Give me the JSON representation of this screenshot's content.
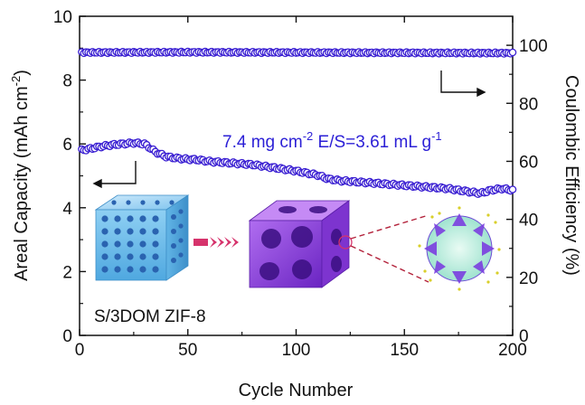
{
  "chart_data": {
    "type": "scatter",
    "xlabel": "Cycle Number",
    "ylabel_left": "Areal Capacity (mAh cm",
    "ylabel_left_sup": "-2",
    "ylabel_left_end": ")",
    "ylabel_right": "Coulombic Efficiency (%)",
    "xlim": [
      0,
      200
    ],
    "ylim_left": [
      0,
      10
    ],
    "ylim_right": [
      0,
      110
    ],
    "x_ticks": [
      "0",
      "50",
      "100",
      "150",
      "200"
    ],
    "y_left_ticks": [
      "0",
      "2",
      "4",
      "6",
      "8",
      "10"
    ],
    "y_right_ticks": [
      "0",
      "20",
      "40",
      "60",
      "80",
      "100"
    ],
    "grid": false,
    "annotation": {
      "loading": "7.4 mg cm",
      "loading_sup": "-2",
      "es_ratio": " E/S=3.61 mL g",
      "es_sup": "-1"
    },
    "sample_label": "S/3DOM ZIF-8",
    "colors": {
      "marker": "#3a1fd2",
      "annotation": "#2b1fd6"
    },
    "series": [
      {
        "axis": "left",
        "points": [
          [
            1,
            5.8
          ],
          [
            5,
            5.85
          ],
          [
            10,
            5.92
          ],
          [
            15,
            5.97
          ],
          [
            20,
            6.0
          ],
          [
            25,
            6.03
          ],
          [
            30,
            6.0
          ],
          [
            35,
            5.75
          ],
          [
            40,
            5.6
          ],
          [
            45,
            5.55
          ],
          [
            50,
            5.52
          ],
          [
            55,
            5.5
          ],
          [
            60,
            5.45
          ],
          [
            70,
            5.4
          ],
          [
            80,
            5.35
          ],
          [
            90,
            5.25
          ],
          [
            100,
            5.15
          ],
          [
            110,
            5.02
          ],
          [
            115,
            4.9
          ],
          [
            120,
            4.85
          ],
          [
            130,
            4.8
          ],
          [
            140,
            4.75
          ],
          [
            150,
            4.7
          ],
          [
            160,
            4.65
          ],
          [
            170,
            4.6
          ],
          [
            180,
            4.5
          ],
          [
            185,
            4.45
          ],
          [
            190,
            4.55
          ],
          [
            195,
            4.6
          ],
          [
            200,
            4.55
          ]
        ]
      },
      {
        "axis": "right",
        "points": [
          [
            1,
            97.5
          ],
          [
            50,
            97.6
          ],
          [
            100,
            97.5
          ],
          [
            150,
            97.4
          ],
          [
            200,
            97.3
          ]
        ]
      }
    ]
  },
  "diagram_icons": [
    "3dom-cube-icon",
    "arrow-icon",
    "porous-block-icon",
    "zif-cluster-icon"
  ]
}
